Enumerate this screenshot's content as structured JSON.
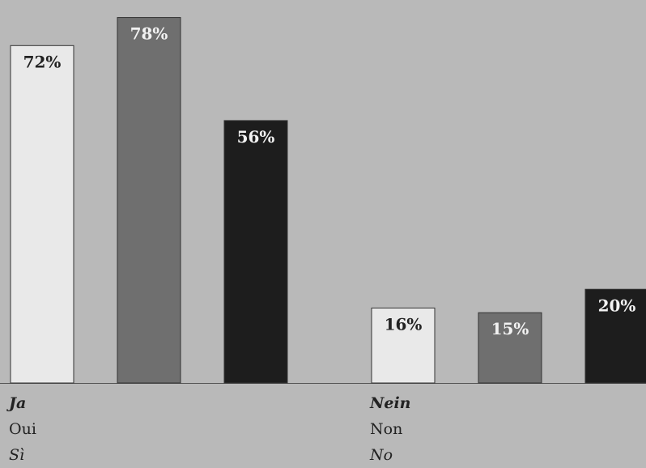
{
  "chart_data": {
    "type": "bar",
    "groups": [
      {
        "labels": [
          "Ja",
          "Oui",
          "Sì"
        ],
        "values": [
          72,
          78,
          56
        ],
        "value_labels": [
          "72%",
          "78%",
          "56%"
        ]
      },
      {
        "labels": [
          "Nein",
          "Non",
          "No"
        ],
        "values": [
          16,
          15,
          20
        ],
        "value_labels": [
          "16%",
          "15%",
          "20%"
        ]
      }
    ],
    "series_colors": [
      "#e9e9e9",
      "#6f6f6f",
      "#1d1d1d"
    ],
    "value_label_colors": [
      "#222222",
      "#f2f2f2",
      "#f2f2f2"
    ],
    "ylim": [
      0,
      80
    ],
    "grid": false,
    "legend": "none"
  }
}
